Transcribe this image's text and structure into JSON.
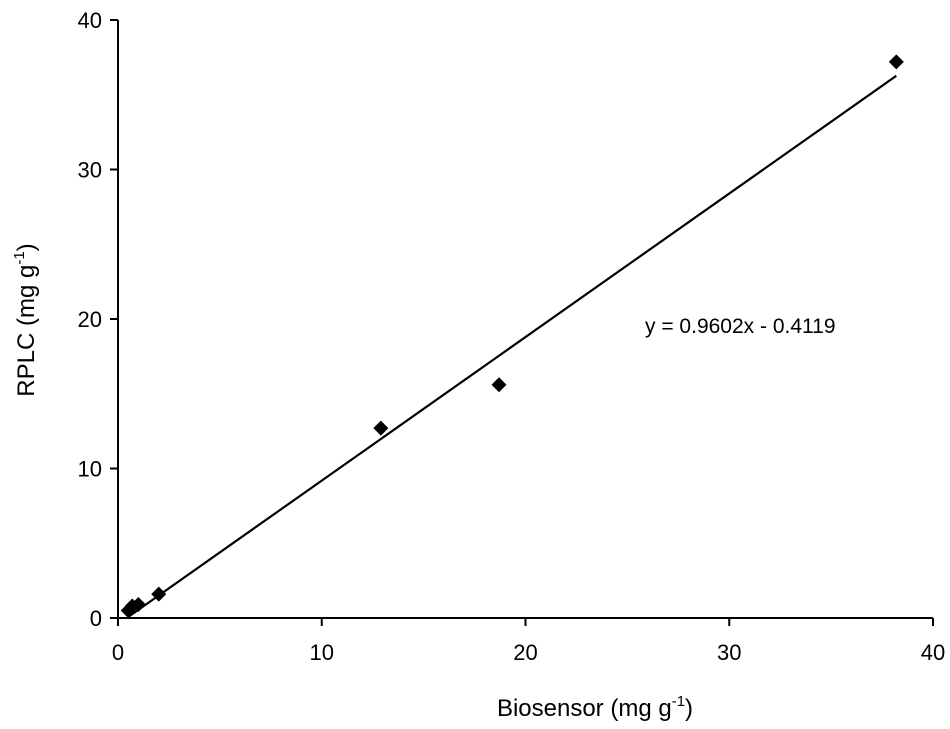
{
  "chart_data": {
    "type": "scatter",
    "xlabel": "Biosensor (mg g",
    "xlabel_sup": "-1",
    "xlabel_end": ")",
    "ylabel": "RPLC (mg g",
    "ylabel_sup": "-1",
    "ylabel_end": ")",
    "xlim": [
      0,
      40
    ],
    "ylim": [
      0,
      40
    ],
    "xticks": [
      0,
      10,
      20,
      30,
      40
    ],
    "yticks": [
      0,
      10,
      20,
      30,
      40
    ],
    "grid": false,
    "points": [
      {
        "x": 0.5,
        "y": 0.5
      },
      {
        "x": 0.7,
        "y": 0.8
      },
      {
        "x": 1.0,
        "y": 0.9
      },
      {
        "x": 2.0,
        "y": 1.6
      },
      {
        "x": 12.9,
        "y": 12.7
      },
      {
        "x": 18.7,
        "y": 15.6
      },
      {
        "x": 38.2,
        "y": 37.2
      }
    ],
    "trendline": {
      "slope": 0.9602,
      "intercept": -0.4119,
      "x_range": [
        0.5,
        38.2
      ]
    },
    "equation": "y = 0.9602x - 0.4119",
    "marker": "diamond",
    "marker_color": "#000000"
  }
}
